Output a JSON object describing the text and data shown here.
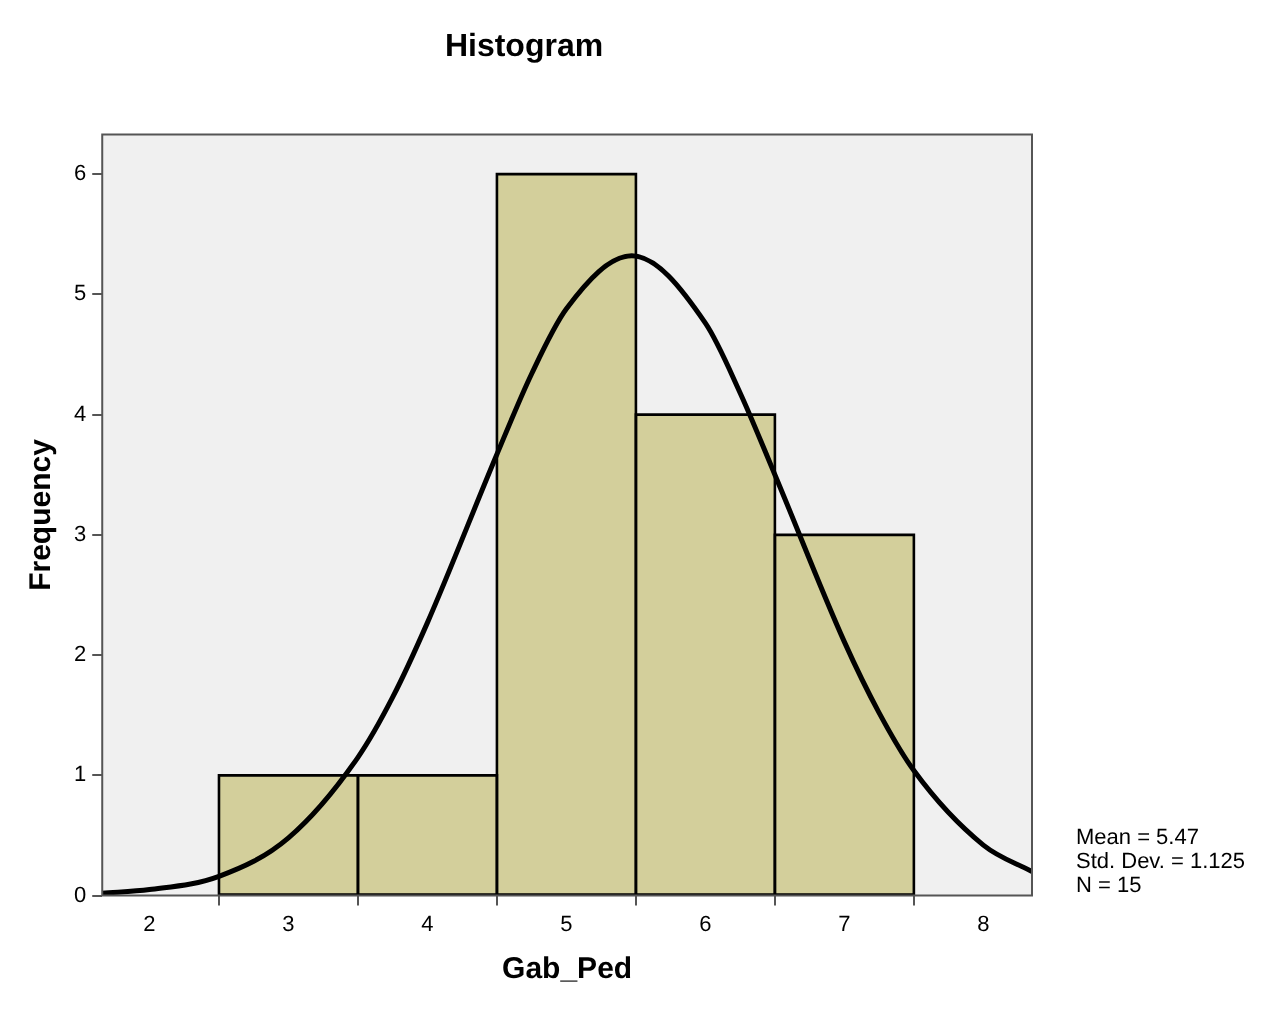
{
  "chart_data": {
    "type": "histogram",
    "title": "Histogram",
    "xlabel": "Gab_Ped",
    "ylabel": "Frequency",
    "bins": [
      2.5,
      3.5,
      4.5,
      5.5,
      6.5,
      7.5
    ],
    "values": [
      1,
      1,
      6,
      4,
      3
    ],
    "color": "#d3cf9b",
    "series": [
      {
        "type": "line",
        "color": "#000000",
        "x": [
          1.66,
          2,
          2.5,
          3,
          3.5,
          3.75,
          4,
          4.5,
          4.75,
          5,
          5.47,
          6,
          6.25,
          6.5,
          7,
          7.25,
          7.5,
          8,
          8.35
        ],
        "values": [
          0.02,
          0.05,
          0.16,
          0.48,
          1.15,
          1.65,
          2.27,
          3.67,
          4.34,
          4.88,
          5.32,
          4.76,
          4.18,
          3.5,
          2.11,
          1.52,
          1.04,
          0.42,
          0.2
        ]
      }
    ],
    "xlim": [
      1.66,
      8.35
    ],
    "xticks": [
      2,
      3,
      4,
      5,
      6,
      7,
      8
    ],
    "ylim": [
      0,
      6.33
    ],
    "yticks": [
      0,
      1,
      2,
      3,
      4,
      5,
      6
    ],
    "grid": false,
    "legend": false,
    "marker": "none",
    "line_style": "solid",
    "annotations": [
      "Mean = 5.47",
      "Std. Dev. = 1.125",
      "N = 15"
    ]
  }
}
